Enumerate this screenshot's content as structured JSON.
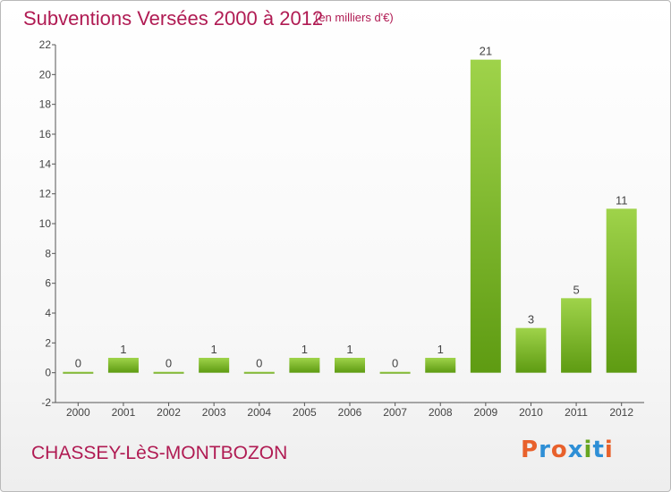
{
  "header": {
    "title": "Subventions Versées 2000 à 2012",
    "subtitle": "(en milliers d'€)"
  },
  "footer": {
    "commune": "CHASSEY-LèS-MONTBOZON",
    "logo_text": "Proxiti"
  },
  "colors": {
    "title": "#b01b53",
    "bar_light": "#9fd34a",
    "bar_dark": "#5e9b12",
    "logo_letters": [
      "#e8612c",
      "#2e8fd6",
      "#e8612c",
      "#2e8fd6",
      "#66a622",
      "#2e8fd6",
      "#e8612c"
    ]
  },
  "chart_data": {
    "type": "bar",
    "title": "Subventions Versées 2000 à 2012",
    "categories": [
      "2000",
      "2001",
      "2002",
      "2003",
      "2004",
      "2005",
      "2006",
      "2007",
      "2008",
      "2009",
      "2010",
      "2011",
      "2012"
    ],
    "values": [
      0,
      1,
      0,
      1,
      0,
      1,
      1,
      0,
      1,
      21,
      3,
      5,
      11
    ],
    "ylim": [
      -2,
      22
    ],
    "yticks": [
      -2,
      0,
      2,
      4,
      6,
      8,
      10,
      12,
      14,
      16,
      18,
      20,
      22
    ],
    "grid": false,
    "legend": "none"
  }
}
